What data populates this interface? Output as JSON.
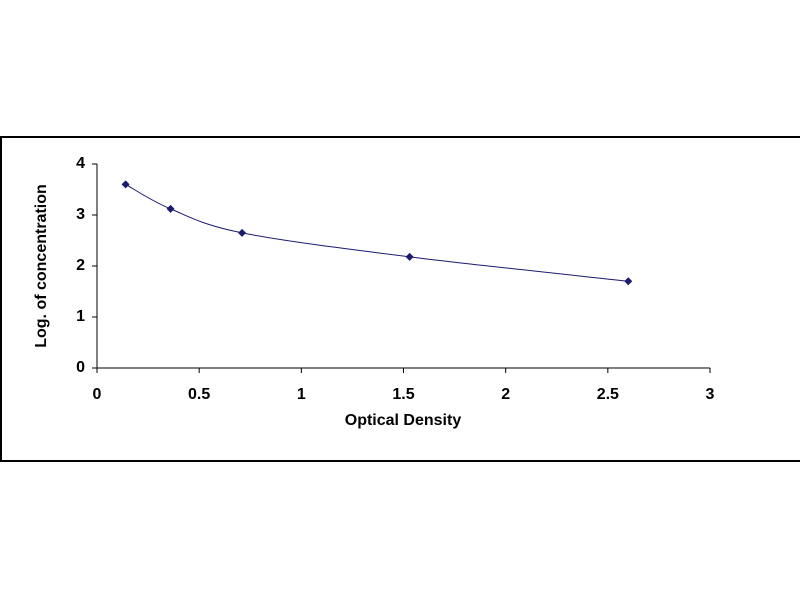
{
  "chart_data": {
    "type": "scatter",
    "x_label": "Optical Density",
    "y_label": "Log. of concentration",
    "series": [
      {
        "x": [
          0.14,
          0.36,
          0.71,
          1.53,
          2.6
        ],
        "values": [
          3.6,
          3.12,
          2.65,
          2.18,
          1.7
        ],
        "color": "#1a1a6e"
      }
    ],
    "smooth": true,
    "grid": false,
    "xlim": [
      0,
      3
    ],
    "xticks": [
      0,
      0.5,
      1,
      1.5,
      2,
      2.5,
      3
    ],
    "ylim": [
      0,
      4
    ],
    "yticks": [
      0,
      1,
      2,
      3,
      4
    ]
  }
}
